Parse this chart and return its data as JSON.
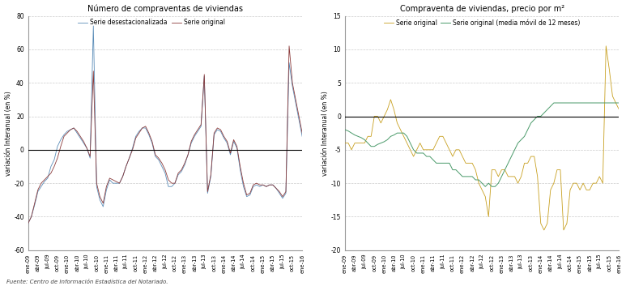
{
  "title1": "Número de compraventas de viviendas",
  "title2": "Compraventa de viviendas, precio por m²",
  "ylabel": "variación Interanual (en %)",
  "legend1a": "Serie original",
  "legend1b": "Serie desestacionalizada",
  "legend2a": "Serie original",
  "legend2b": "Serie original (media móvil de 12 meses)",
  "source": "Fuente: Centro de Información Estadística del Notariado.",
  "color1a": "#8B3A3A",
  "color1b": "#5B8DB8",
  "color2a": "#C8A020",
  "color2b": "#4A9A6A",
  "ylim1": [
    -60,
    80
  ],
  "ylim2": [
    -20,
    15
  ],
  "yticks1": [
    -60,
    -40,
    -20,
    0,
    20,
    40,
    60,
    80
  ],
  "yticks2": [
    -20,
    -15,
    -10,
    -5,
    0,
    5,
    10,
    15
  ],
  "xtick_labels": [
    "ene-09",
    "abr-09",
    "jul-09",
    "oct-09",
    "ene-10",
    "abr-10",
    "jul-10",
    "oct-10",
    "ene-11",
    "abr-11",
    "jul-11",
    "oct-11",
    "ene-12",
    "abr-12",
    "jul-12",
    "oct-12",
    "ene-13",
    "abr-13",
    "jul-13",
    "oct-13",
    "ene-14",
    "abr-14",
    "jul-14",
    "oct-14",
    "ene-15",
    "abr-15",
    "jul-15",
    "oct-15",
    "ene-16"
  ],
  "s1a": [
    -44,
    -40,
    -32,
    -24,
    -20,
    -18,
    -16,
    -14,
    -10,
    -5,
    2,
    8,
    10,
    12,
    13,
    11,
    8,
    5,
    1,
    -4,
    47,
    -20,
    -28,
    -32,
    -22,
    -17,
    -18,
    -19,
    -20,
    -16,
    -10,
    -5,
    0,
    7,
    10,
    13,
    14,
    10,
    5,
    -3,
    -5,
    -8,
    -12,
    -18,
    -20,
    -20,
    -14,
    -12,
    -8,
    -3,
    5,
    9,
    12,
    15,
    45,
    -25,
    -15,
    10,
    13,
    12,
    8,
    5,
    -2,
    6,
    2,
    -10,
    -20,
    -27,
    -26,
    -21,
    -20,
    -21,
    -21,
    -22,
    -21,
    -21,
    -23,
    -25,
    -28,
    -25,
    62,
    40,
    30,
    20,
    10,
    5,
    5,
    5,
    3,
    0,
    -3,
    -8,
    -5,
    10,
    15,
    25,
    20,
    15,
    10,
    10,
    8,
    5,
    -7,
    -10
  ],
  "s1b": [
    -44,
    -40,
    -33,
    -25,
    -22,
    -19,
    -17,
    -10,
    -6,
    2,
    6,
    9,
    11,
    12,
    13,
    10,
    7,
    4,
    1,
    -5,
    74,
    -22,
    -30,
    -34,
    -24,
    -18,
    -20,
    -20,
    -20,
    -16,
    -10,
    -5,
    1,
    8,
    11,
    13,
    13,
    9,
    4,
    -4,
    -6,
    -10,
    -14,
    -22,
    -22,
    -20,
    -15,
    -13,
    -9,
    -3,
    4,
    8,
    11,
    14,
    44,
    -26,
    -16,
    9,
    12,
    11,
    7,
    4,
    -3,
    5,
    1,
    -12,
    -22,
    -28,
    -27,
    -22,
    -21,
    -22,
    -21,
    -22,
    -21,
    -21,
    -23,
    -26,
    -29,
    -26,
    52,
    38,
    28,
    18,
    8,
    4,
    4,
    4,
    2,
    0,
    -4,
    -9,
    -6,
    9,
    14,
    24,
    19,
    14,
    9,
    9,
    7,
    4,
    -8,
    -11
  ],
  "s2a": [
    -4,
    -4,
    -5,
    -4,
    -4,
    -4,
    -4,
    -3,
    -3,
    0,
    0,
    -1,
    0,
    1,
    2.5,
    1,
    -1,
    -2,
    -3,
    -4,
    -5,
    -6,
    -5,
    -4,
    -5,
    -5,
    -5,
    -5,
    -4,
    -3,
    -3,
    -4,
    -5,
    -6,
    -5,
    -5,
    -6,
    -7,
    -7,
    -7,
    -8,
    -10,
    -11,
    -12,
    -15,
    -8,
    -8,
    -9,
    -8,
    -8,
    -9,
    -9,
    -9,
    -10,
    -9,
    -7,
    -7,
    -6,
    -6,
    -9,
    -16,
    -17,
    -16,
    -11,
    -10,
    -8,
    -8,
    -17,
    -16,
    -11,
    -10,
    -10,
    -11,
    -10,
    -11,
    -11,
    -10,
    -10,
    -9,
    -10,
    10.5,
    7,
    3,
    2,
    1,
    0,
    0,
    0,
    -1,
    -3,
    -2,
    -2,
    0,
    -1,
    -2,
    -1,
    1,
    2,
    5.5,
    4,
    3,
    4,
    3,
    2,
    2
  ],
  "s2b": [
    -2,
    -2.2,
    -2.5,
    -2.8,
    -3,
    -3.2,
    -3.5,
    -4,
    -4.5,
    -4.5,
    -4.2,
    -4,
    -3.8,
    -3.5,
    -3,
    -2.8,
    -2.5,
    -2.5,
    -2.5,
    -3,
    -4,
    -5,
    -5.5,
    -5.5,
    -5.5,
    -6,
    -6,
    -6.5,
    -7,
    -7,
    -7,
    -7,
    -7,
    -8,
    -8,
    -8.5,
    -9,
    -9,
    -9,
    -9,
    -9.5,
    -9.5,
    -10,
    -10.5,
    -10,
    -10.5,
    -10.5,
    -10,
    -9,
    -8,
    -7,
    -6,
    -5,
    -4,
    -3.5,
    -3,
    -2,
    -1,
    -0.5,
    0,
    0,
    0.5,
    1,
    1.5,
    2,
    2
  ]
}
